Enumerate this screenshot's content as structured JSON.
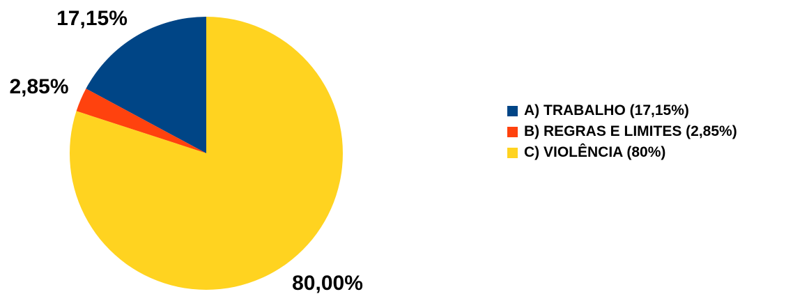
{
  "chart_data": {
    "type": "pie",
    "categories": [
      "A) TRABALHO (17,15%)",
      "B) REGRAS E LIMITES (2,85%)",
      "C) VIOLÊNCIA (80%)"
    ],
    "values": [
      17.15,
      2.85,
      80.0
    ],
    "data_labels": [
      "17,15%",
      "2,85%",
      "80,00%"
    ],
    "colors": [
      "#004586",
      "#ff420e",
      "#ffd320"
    ],
    "start_angle_deg": 0,
    "direction": "counterclockwise",
    "legend_position": "right"
  }
}
